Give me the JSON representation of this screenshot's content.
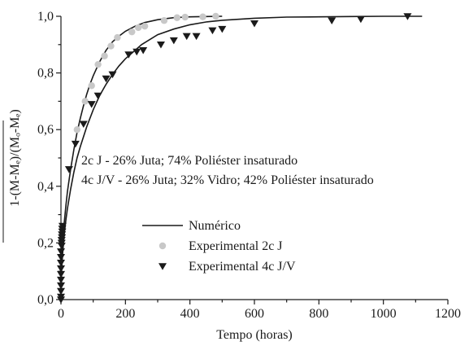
{
  "chart_data": {
    "type": "scatter",
    "xlabel": "Tempo (horas)",
    "ylabel": "1-(M-Mₑ)/(Mₒ-Mₑ)",
    "xlim": [
      0,
      1200
    ],
    "ylim": [
      0,
      1.0
    ],
    "xticks": [
      0,
      200,
      400,
      600,
      800,
      1000,
      1200
    ],
    "xtick_labels": [
      "0",
      "200",
      "400",
      "600",
      "800",
      "1000",
      "1200"
    ],
    "yticks": [
      0,
      0.2,
      0.4,
      0.6,
      0.8,
      1.0
    ],
    "ytick_labels": [
      "0,0",
      "0,2",
      "0,4",
      "0,6",
      "0,8",
      "1,0"
    ],
    "grid": false,
    "legend_position": "bottom-center",
    "annotations": [
      "2c J - 26% Juta; 74% Poliéster insaturado",
      "4c J/V - 26% Juta; 32% Vidro; 42% Poliéster insaturado"
    ],
    "series": [
      {
        "name": "Numérico",
        "kind": "line",
        "color": "#1a1a1a",
        "curves": [
          {
            "x": [
              0,
              2,
              5,
              10,
              15,
              20,
              25,
              30,
              40,
              50,
              60,
              70,
              80,
              90,
              100,
              120,
              140,
              160,
              180,
              200,
              230,
              260,
              300,
              350,
              400,
              450,
              500
            ],
            "y": [
              0.0,
              0.12,
              0.19,
              0.27,
              0.33,
              0.38,
              0.42,
              0.46,
              0.53,
              0.59,
              0.64,
              0.685,
              0.725,
              0.76,
              0.79,
              0.84,
              0.88,
              0.91,
              0.93,
              0.947,
              0.965,
              0.978,
              0.988,
              0.995,
              0.998,
              0.999,
              1.0
            ]
          },
          {
            "x": [
              0,
              2,
              5,
              10,
              15,
              20,
              30,
              40,
              50,
              60,
              80,
              100,
              120,
              140,
              160,
              180,
              200,
              250,
              300,
              350,
              400,
              450,
              500,
              600,
              700,
              800,
              900,
              1000,
              1100,
              1120
            ],
            "y": [
              0.0,
              0.1,
              0.16,
              0.23,
              0.28,
              0.32,
              0.39,
              0.45,
              0.5,
              0.54,
              0.61,
              0.67,
              0.72,
              0.76,
              0.795,
              0.825,
              0.85,
              0.9,
              0.935,
              0.955,
              0.97,
              0.98,
              0.986,
              0.993,
              0.997,
              0.998,
              0.999,
              1.0,
              1.0,
              1.0
            ]
          }
        ]
      },
      {
        "name": "Experimental 2c J",
        "kind": "scatter",
        "marker": "circle",
        "color": "#c8c8c8",
        "x": [
          50,
          75,
          95,
          115,
          135,
          155,
          175,
          220,
          240,
          260,
          320,
          360,
          385,
          440,
          480
        ],
        "y": [
          0.6,
          0.7,
          0.755,
          0.83,
          0.86,
          0.895,
          0.925,
          0.945,
          0.96,
          0.965,
          0.985,
          0.995,
          0.997,
          0.998,
          1.0
        ]
      },
      {
        "name": "Experimental 4c J/V",
        "kind": "scatter",
        "marker": "triangle-down",
        "color": "#1a1a1a",
        "x": [
          0,
          0,
          0,
          0,
          0,
          0,
          0,
          0,
          0,
          0,
          2,
          2,
          2,
          3,
          3,
          4,
          4,
          5,
          25,
          45,
          70,
          95,
          115,
          140,
          160,
          210,
          235,
          255,
          310,
          350,
          390,
          420,
          470,
          500,
          600,
          840,
          930,
          1075
        ],
        "y": [
          0.0,
          0.01,
          0.03,
          0.05,
          0.07,
          0.09,
          0.11,
          0.13,
          0.15,
          0.17,
          0.19,
          0.2,
          0.21,
          0.22,
          0.23,
          0.24,
          0.25,
          0.26,
          0.46,
          0.55,
          0.62,
          0.69,
          0.72,
          0.78,
          0.795,
          0.865,
          0.875,
          0.88,
          0.9,
          0.915,
          0.93,
          0.93,
          0.95,
          0.955,
          0.975,
          0.985,
          0.99,
          1.0
        ]
      }
    ]
  }
}
